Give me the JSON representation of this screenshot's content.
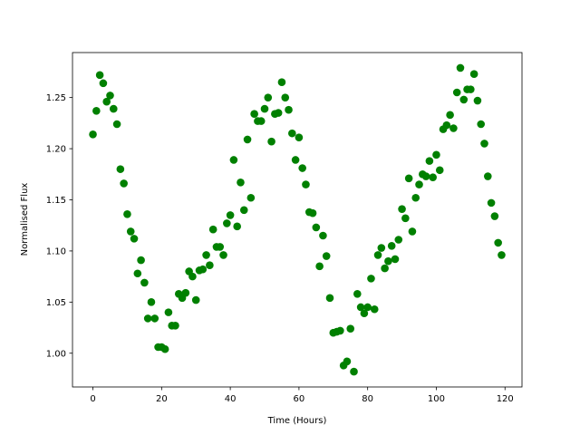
{
  "chart_data": {
    "type": "scatter",
    "xlabel": "Time (Hours)",
    "ylabel": "Normalised Flux",
    "color": "#008000",
    "x": [
      0,
      1,
      2,
      3,
      4,
      5,
      6,
      7,
      8,
      9,
      10,
      11,
      12,
      13,
      14,
      15,
      16,
      17,
      18,
      19,
      20,
      21,
      22,
      23,
      24,
      25,
      26,
      27,
      28,
      29,
      30,
      31,
      32,
      33,
      34,
      35,
      36,
      37,
      38,
      39,
      40,
      41,
      42,
      43,
      44,
      45,
      46,
      47,
      48,
      49,
      50,
      51,
      52,
      53,
      54,
      55,
      56,
      57,
      58,
      59,
      60,
      61,
      62,
      63,
      64,
      65,
      66,
      67,
      68,
      69,
      70,
      71,
      72,
      73,
      74,
      75,
      76,
      77,
      78,
      79,
      80,
      81,
      82,
      83,
      84,
      85,
      86,
      87,
      88,
      89,
      90,
      91,
      92,
      93,
      94,
      95,
      96,
      97,
      98,
      99,
      100,
      101,
      102,
      103,
      104,
      105,
      106,
      107,
      108,
      109,
      110,
      111,
      112,
      113,
      114,
      115,
      116,
      117,
      118,
      119
    ],
    "values": [
      1.214,
      1.237,
      1.272,
      1.264,
      1.246,
      1.252,
      1.239,
      1.224,
      1.18,
      1.166,
      1.136,
      1.119,
      1.112,
      1.078,
      1.091,
      1.069,
      1.034,
      1.05,
      1.034,
      1.006,
      1.006,
      1.004,
      1.04,
      1.027,
      1.027,
      1.058,
      1.054,
      1.059,
      1.08,
      1.075,
      1.052,
      1.081,
      1.082,
      1.096,
      1.086,
      1.121,
      1.104,
      1.104,
      1.096,
      1.127,
      1.135,
      1.189,
      1.124,
      1.167,
      1.14,
      1.209,
      1.152,
      1.234,
      1.227,
      1.227,
      1.239,
      1.25,
      1.207,
      1.234,
      1.235,
      1.265,
      1.25,
      1.238,
      1.215,
      1.189,
      1.211,
      1.181,
      1.165,
      1.138,
      1.137,
      1.123,
      1.085,
      1.115,
      1.095,
      1.054,
      1.02,
      1.021,
      1.022,
      0.988,
      0.992,
      1.024,
      0.982,
      1.058,
      1.045,
      1.039,
      1.045,
      1.073,
      1.043,
      1.096,
      1.103,
      1.083,
      1.09,
      1.105,
      1.092,
      1.111,
      1.141,
      1.132,
      1.171,
      1.119,
      1.152,
      1.165,
      1.175,
      1.173,
      1.188,
      1.172,
      1.194,
      1.179,
      1.219,
      1.223,
      1.233,
      1.22,
      1.255,
      1.279,
      1.248,
      1.258,
      1.258,
      1.273,
      1.247,
      1.224,
      1.205,
      1.173,
      1.147,
      1.134,
      1.108,
      1.096
    ],
    "xlim": [
      -5.95,
      124.95
    ],
    "xticks": [
      0,
      20,
      40,
      60,
      80,
      100,
      120
    ],
    "ylim": [
      0.967,
      1.294
    ],
    "yticks": [
      {
        "value": 1,
        "label": "1.00"
      },
      1.05,
      {
        "value": 1.1,
        "label": "1.10"
      },
      1.15,
      {
        "value": 1.2,
        "label": "1.20"
      },
      1.25
    ]
  }
}
